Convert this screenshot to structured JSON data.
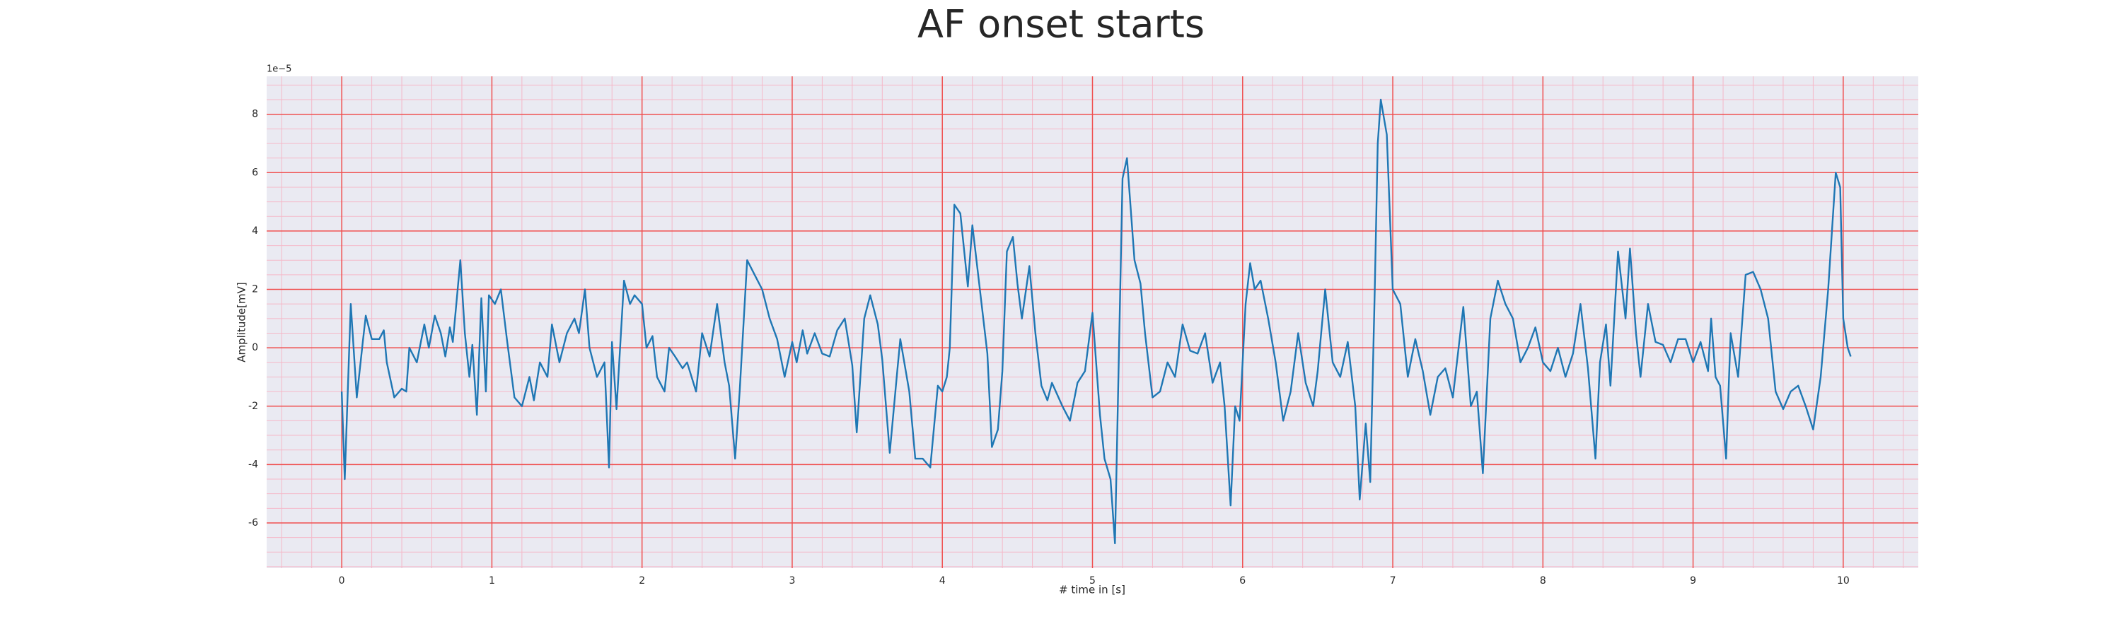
{
  "chart_data": {
    "type": "line",
    "title": "AF onset starts",
    "xlabel": "# time in [s]",
    "ylabel": "Amplitude[mV]",
    "y_offset_label": "1e−5",
    "xlim": [
      -0.5,
      10.5
    ],
    "ylim": [
      -7.55,
      9.3
    ],
    "xticks": [
      0,
      1,
      2,
      3,
      4,
      5,
      6,
      7,
      8,
      9,
      10
    ],
    "yticks": [
      -6,
      -4,
      -2,
      0,
      2,
      4,
      6,
      8
    ],
    "grid": true,
    "minor_grid": true,
    "background": "#eaeaf2",
    "grid_color": "#f05050",
    "minor_grid_color": "#f5b8c8",
    "series": [
      {
        "color": "#1f77b4",
        "x": [
          0,
          0.02,
          0.06,
          0.1,
          0.14,
          0.16,
          0.2,
          0.25,
          0.28,
          0.3,
          0.35,
          0.4,
          0.43,
          0.45,
          0.5,
          0.55,
          0.58,
          0.62,
          0.66,
          0.69,
          0.72,
          0.74,
          0.79,
          0.82,
          0.85,
          0.87,
          0.9,
          0.93,
          0.96,
          0.98,
          1.02,
          1.06,
          1.1,
          1.15,
          1.2,
          1.25,
          1.28,
          1.32,
          1.37,
          1.4,
          1.45,
          1.5,
          1.55,
          1.58,
          1.62,
          1.65,
          1.7,
          1.75,
          1.78,
          1.8,
          1.83,
          1.88,
          1.92,
          1.95,
          2.0,
          2.03,
          2.07,
          2.1,
          2.15,
          2.18,
          2.22,
          2.27,
          2.3,
          2.36,
          2.4,
          2.45,
          2.5,
          2.55,
          2.58,
          2.62,
          2.65,
          2.7,
          2.75,
          2.8,
          2.85,
          2.9,
          2.95,
          3.0,
          3.03,
          3.07,
          3.1,
          3.15,
          3.2,
          3.25,
          3.3,
          3.35,
          3.4,
          3.43,
          3.48,
          3.52,
          3.57,
          3.6,
          3.65,
          3.7,
          3.72,
          3.78,
          3.82,
          3.87,
          3.92,
          3.97,
          4.0,
          4.03,
          4.05,
          4.08,
          4.12,
          4.17,
          4.2,
          4.25,
          4.3,
          4.33,
          4.37,
          4.4,
          4.43,
          4.47,
          4.5,
          4.53,
          4.58,
          4.62,
          4.66,
          4.7,
          4.73,
          4.8,
          4.85,
          4.9,
          4.95,
          5.0,
          5.05,
          5.08,
          5.12,
          5.15,
          5.2,
          5.23,
          5.28,
          5.32,
          5.35,
          5.4,
          5.45,
          5.5,
          5.55,
          5.6,
          5.65,
          5.7,
          5.75,
          5.8,
          5.85,
          5.88,
          5.92,
          5.95,
          5.98,
          6.02,
          6.05,
          6.08,
          6.12,
          6.17,
          6.22,
          6.27,
          6.32,
          6.37,
          6.42,
          6.47,
          6.5,
          6.55,
          6.6,
          6.65,
          6.7,
          6.75,
          6.78,
          6.82,
          6.85,
          6.88,
          6.9,
          6.92,
          6.96,
          7.0,
          7.05,
          7.1,
          7.15,
          7.2,
          7.25,
          7.3,
          7.35,
          7.4,
          7.47,
          7.52,
          7.56,
          7.6,
          7.65,
          7.7,
          7.75,
          7.8,
          7.85,
          7.9,
          7.95,
          8.0,
          8.05,
          8.1,
          8.15,
          8.2,
          8.25,
          8.3,
          8.35,
          8.38,
          8.42,
          8.45,
          8.5,
          8.55,
          8.58,
          8.62,
          8.65,
          8.7,
          8.75,
          8.8,
          8.85,
          8.9,
          8.95,
          9.0,
          9.05,
          9.1,
          9.12,
          9.15,
          9.18,
          9.22,
          9.25,
          9.3,
          9.35,
          9.4,
          9.45,
          9.5,
          9.55,
          9.6,
          9.65,
          9.7,
          9.75,
          9.8,
          9.85,
          9.9,
          9.95,
          9.98,
          10.0,
          10.03,
          10.05
        ],
        "values": [
          -1.5,
          -4.5,
          1.5,
          -1.7,
          0.2,
          1.1,
          0.3,
          0.3,
          0.6,
          -0.5,
          -1.7,
          -1.4,
          -1.5,
          0,
          -0.5,
          0.8,
          0,
          1.1,
          0.5,
          -0.3,
          0.7,
          0.2,
          3.0,
          0.5,
          -1.0,
          0.1,
          -2.3,
          1.7,
          -1.5,
          1.8,
          1.5,
          2.0,
          0.3,
          -1.7,
          -2.0,
          -1.0,
          -1.8,
          -0.5,
          -1.0,
          0.8,
          -0.5,
          0.5,
          1.0,
          0.5,
          2.0,
          0,
          -1.0,
          -0.5,
          -4.1,
          0.2,
          -2.1,
          2.3,
          1.5,
          1.8,
          1.5,
          0,
          0.4,
          -1.0,
          -1.5,
          0,
          -0.3,
          -0.7,
          -0.5,
          -1.5,
          0.5,
          -0.3,
          1.5,
          -0.5,
          -1.3,
          -3.8,
          -1.5,
          3.0,
          2.5,
          2.0,
          1.0,
          0.3,
          -1.0,
          0.2,
          -0.5,
          0.6,
          -0.2,
          0.5,
          -0.2,
          -0.3,
          0.6,
          1.0,
          -0.6,
          -2.9,
          1.0,
          1.8,
          0.8,
          -0.4,
          -3.6,
          -0.8,
          0.3,
          -1.5,
          -3.8,
          -3.8,
          -4.1,
          -1.3,
          -1.5,
          -1.0,
          0,
          4.9,
          4.6,
          2.1,
          4.2,
          2.0,
          -0.2,
          -3.4,
          -2.8,
          -0.8,
          3.3,
          3.8,
          2.2,
          1.0,
          2.8,
          0.5,
          -1.3,
          -1.8,
          -1.2,
          -2.0,
          -2.5,
          -1.2,
          -0.8,
          1.2,
          -2.3,
          -3.8,
          -4.5,
          -6.7,
          5.8,
          6.5,
          3.0,
          2.2,
          0.5,
          -1.7,
          -1.5,
          -0.5,
          -1.0,
          0.8,
          -0.1,
          -0.2,
          0.5,
          -1.2,
          -0.5,
          -2.0,
          -5.4,
          -2.0,
          -2.5,
          1.5,
          2.9,
          2.0,
          2.3,
          1.0,
          -0.5,
          -2.5,
          -1.5,
          0.5,
          -1.2,
          -2.0,
          -0.8,
          2.0,
          -0.5,
          -1.0,
          0.2,
          -2.0,
          -5.2,
          -2.6,
          -4.6,
          2.0,
          7.0,
          8.5,
          7.3,
          2.0,
          1.5,
          -1.0,
          0.3,
          -0.8,
          -2.3,
          -1.0,
          -0.7,
          -1.7,
          1.4,
          -2.0,
          -1.5,
          -4.3,
          1.0,
          2.3,
          1.5,
          1.0,
          -0.5,
          0,
          0.7,
          -0.5,
          -0.8,
          0,
          -1.0,
          -0.2,
          1.5,
          -0.7,
          -3.8,
          -0.5,
          0.8,
          -1.3,
          3.3,
          1.0,
          3.4,
          0.5,
          -1.0,
          1.5,
          0.2,
          0.1,
          -0.5,
          0.3,
          0.3,
          -0.5,
          0.2,
          -0.8,
          1.0,
          -1.0,
          -1.3,
          -3.8,
          0.5,
          -1.0,
          2.5,
          2.6,
          2.0,
          1.0,
          -1.5,
          -2.1,
          -1.5,
          -1.3,
          -2.0,
          -2.8,
          -1.0,
          2.0,
          6.0,
          5.5,
          1.0,
          0,
          -0.3
        ]
      }
    ]
  }
}
